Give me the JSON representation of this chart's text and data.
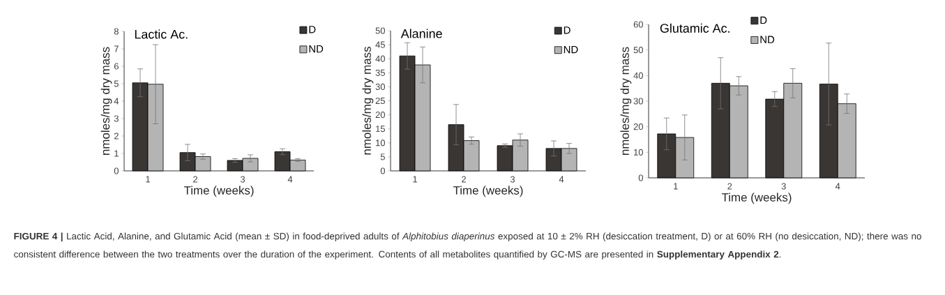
{
  "chart_data": [
    {
      "type": "bar",
      "title": "Lactic Ac.",
      "xlabel": "Time (weeks)",
      "ylabel": "nmoles/mg dry mass",
      "categories": [
        "1",
        "2",
        "3",
        "4"
      ],
      "series": [
        {
          "name": "D",
          "color": "#3a3634",
          "values": [
            5.05,
            1.05,
            0.6,
            1.1
          ],
          "errors": [
            0.8,
            0.47,
            0.1,
            0.17
          ]
        },
        {
          "name": "ND",
          "color": "#b4b4b4",
          "values": [
            4.97,
            0.82,
            0.72,
            0.62
          ],
          "errors": [
            2.27,
            0.15,
            0.2,
            0.08
          ]
        }
      ],
      "ylim": [
        0,
        8
      ],
      "yticks": [
        0,
        1,
        2,
        3,
        4,
        5,
        6,
        7,
        8
      ],
      "legend": "top right",
      "annotations": [
        "**FIGURE 4 |** Lactic Acid, Alanine, and Glutamic Acid (mean ± SD) in food-deprived adults of *Alphitobius diaperinus* exposed at 10 ± 2% RH (desiccation treatment, D) or at 60% RH (no desiccation, ND); there was no consistent difference between the two treatments over the duration of the experiment. Contents of all metabolites quantified by GC-MS are presented in **Supplementary Appendix 2**."
      ]
    },
    {
      "type": "bar",
      "title": "Alanine",
      "xlabel": "Time (weeks)",
      "ylabel": "nmoles/mg dry mass",
      "categories": [
        "1",
        "2",
        "3",
        "4"
      ],
      "series": [
        {
          "name": "D",
          "color": "#3a3634",
          "values": [
            41,
            16.5,
            9,
            8
          ],
          "errors": [
            4.7,
            7.2,
            0.6,
            2.7
          ]
        },
        {
          "name": "ND",
          "color": "#b4b4b4",
          "values": [
            37.8,
            10.8,
            11,
            8
          ],
          "errors": [
            6.4,
            1.3,
            2.2,
            1.8
          ]
        }
      ],
      "ylim": [
        0,
        50
      ],
      "yticks": [
        0,
        5,
        10,
        15,
        20,
        25,
        30,
        35,
        40,
        45,
        50
      ],
      "legend": "top right"
    },
    {
      "type": "bar",
      "title": "Glutamic Ac.",
      "xlabel": "Time (weeks)",
      "ylabel": "nmoles/mg dry mass",
      "categories": [
        "1",
        "2",
        "3",
        "4"
      ],
      "series": [
        {
          "name": "D",
          "color": "#3a3634",
          "values": [
            17.2,
            37,
            30.8,
            36.7
          ],
          "errors": [
            6.2,
            10,
            2.9,
            16
          ]
        },
        {
          "name": "ND",
          "color": "#b4b4b4",
          "values": [
            15.8,
            36,
            37,
            29
          ],
          "errors": [
            8.8,
            3.6,
            5.7,
            3.8
          ]
        }
      ],
      "ylim": [
        0,
        60
      ],
      "yticks": [
        0,
        10,
        20,
        30,
        40,
        50,
        60
      ],
      "legend": "top right"
    }
  ]
}
